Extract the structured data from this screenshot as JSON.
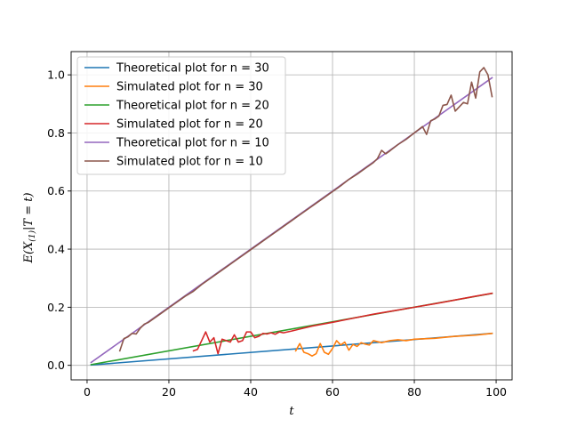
{
  "chart_data": {
    "type": "line",
    "xlabel": "t",
    "ylabel": "E(X_(1)|T = t)",
    "xlim": [
      -3.9,
      103.9
    ],
    "ylim": [
      -0.05,
      1.08
    ],
    "xticks": [
      0,
      20,
      40,
      60,
      80,
      100
    ],
    "xtick_labels": [
      "0",
      "20",
      "40",
      "60",
      "80",
      "100"
    ],
    "yticks": [
      0.0,
      0.2,
      0.4,
      0.6,
      0.8,
      1.0
    ],
    "ytick_labels": [
      "0.0",
      "0.2",
      "0.4",
      "0.6",
      "0.8",
      "1.0"
    ],
    "grid": true,
    "legend_position": "top-left",
    "series": [
      {
        "name": "Theoretical plot for n = 30",
        "color": "#1f77b4",
        "x": [
          1,
          99
        ],
        "y": [
          0.0011,
          0.11
        ]
      },
      {
        "name": "Simulated plot for n = 30",
        "color": "#ff7f0e",
        "x": [
          51,
          52,
          53,
          54,
          55,
          56,
          57,
          58,
          59,
          60,
          61,
          62,
          63,
          64,
          65,
          66,
          67,
          68,
          69,
          70,
          72,
          74,
          76,
          78,
          80,
          85,
          90,
          95,
          99
        ],
        "y": [
          0.05,
          0.075,
          0.045,
          0.04,
          0.032,
          0.04,
          0.075,
          0.045,
          0.038,
          0.058,
          0.085,
          0.07,
          0.08,
          0.052,
          0.072,
          0.065,
          0.078,
          0.073,
          0.07,
          0.085,
          0.078,
          0.085,
          0.088,
          0.085,
          0.09,
          0.093,
          0.1,
          0.104,
          0.11
        ]
      },
      {
        "name": "Theoretical plot for n = 20",
        "color": "#2ca02c",
        "x": [
          1,
          99
        ],
        "y": [
          0.0025,
          0.2475
        ]
      },
      {
        "name": "Simulated plot for n = 20",
        "color": "#d62728",
        "x": [
          26,
          27,
          28,
          29,
          30,
          31,
          32,
          33,
          34,
          35,
          36,
          37,
          38,
          39,
          40,
          41,
          42,
          43,
          44,
          45,
          46,
          47,
          48,
          50,
          52,
          55,
          60,
          65,
          70,
          75,
          80,
          85,
          90,
          95,
          99
        ],
        "y": [
          0.05,
          0.055,
          0.085,
          0.115,
          0.08,
          0.095,
          0.04,
          0.09,
          0.085,
          0.08,
          0.105,
          0.08,
          0.085,
          0.115,
          0.115,
          0.095,
          0.1,
          0.11,
          0.108,
          0.112,
          0.107,
          0.115,
          0.112,
          0.118,
          0.125,
          0.135,
          0.148,
          0.162,
          0.176,
          0.188,
          0.2,
          0.212,
          0.225,
          0.238,
          0.248
        ]
      },
      {
        "name": "Theoretical plot for n = 10",
        "color": "#9467bd",
        "x": [
          1,
          99
        ],
        "y": [
          0.01,
          0.99
        ]
      },
      {
        "name": "Simulated plot for n = 10",
        "color": "#8c564b",
        "x": [
          8,
          9,
          10,
          11,
          12,
          13,
          14,
          15,
          16,
          17,
          18,
          20,
          22,
          24,
          26,
          28,
          30,
          32,
          34,
          36,
          38,
          40,
          42,
          44,
          46,
          48,
          50,
          52,
          54,
          56,
          58,
          60,
          62,
          64,
          66,
          68,
          70,
          71,
          72,
          73,
          74,
          76,
          78,
          80,
          82,
          83,
          84,
          85,
          86,
          87,
          88,
          89,
          90,
          91,
          92,
          93,
          94,
          95,
          96,
          97,
          98,
          99
        ],
        "y": [
          0.05,
          0.092,
          0.098,
          0.11,
          0.108,
          0.128,
          0.142,
          0.148,
          0.158,
          0.168,
          0.178,
          0.198,
          0.218,
          0.238,
          0.255,
          0.278,
          0.298,
          0.318,
          0.338,
          0.358,
          0.378,
          0.398,
          0.418,
          0.438,
          0.458,
          0.478,
          0.498,
          0.518,
          0.538,
          0.558,
          0.578,
          0.598,
          0.618,
          0.64,
          0.658,
          0.678,
          0.698,
          0.712,
          0.74,
          0.728,
          0.738,
          0.76,
          0.778,
          0.8,
          0.822,
          0.795,
          0.842,
          0.848,
          0.858,
          0.895,
          0.898,
          0.93,
          0.875,
          0.89,
          0.905,
          0.9,
          0.975,
          0.92,
          1.01,
          1.025,
          1.0,
          0.925
        ]
      }
    ]
  }
}
